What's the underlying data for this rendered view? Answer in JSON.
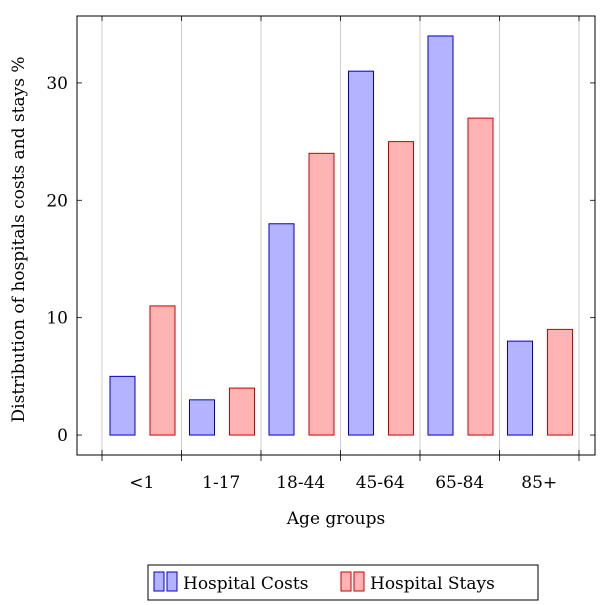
{
  "chart_data": {
    "type": "bar",
    "categories": [
      "<1",
      "1-17",
      "18-44",
      "45-64",
      "65-84",
      "85+"
    ],
    "series": [
      {
        "name": "Hospital Costs",
        "values": [
          5,
          3,
          18,
          31,
          34,
          8
        ],
        "fill": "#b3b3ff",
        "stroke": "#0000cc"
      },
      {
        "name": "Hospital Stays",
        "values": [
          11,
          4,
          24,
          25,
          27,
          9
        ],
        "fill": "#ffb3b3",
        "stroke": "#cc0000"
      }
    ],
    "xlabel": "Age groups",
    "ylabel": "Distribution of hospitals costs and stays %",
    "ylim": [
      -1.7,
      35.7
    ],
    "yticks": [
      0,
      10,
      20,
      30
    ],
    "grid": "vertical",
    "legend_position": "bottom-center"
  }
}
